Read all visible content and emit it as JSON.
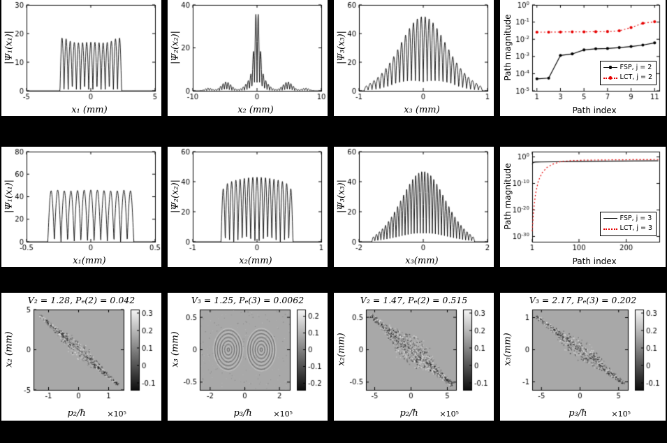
{
  "figure": {
    "background": "#000000",
    "panel_background": "#ffffff",
    "line_color": "#000000",
    "lct_color": "#e60000",
    "heatmap_background": "#a8a8a8",
    "colorbar_top": "#f6f6f6",
    "colorbar_bottom": "#0d0d0d"
  },
  "chart_data": [
    {
      "id": "r1c1",
      "type": "line",
      "xlabel": "x₁ (mm)",
      "ylabel": "|Ψ₁(x₁)|",
      "xlim": [
        -5,
        5
      ],
      "ylim": [
        0,
        30
      ],
      "xticks": [
        -5,
        0,
        5
      ],
      "yticks": [
        0,
        10,
        20,
        30
      ],
      "wave": {
        "model": "comb",
        "support": 2.4,
        "peaks": 15,
        "edge": 26.5,
        "mid": 17
      }
    },
    {
      "id": "r1c2",
      "type": "line",
      "xlabel": "x₂ (mm)",
      "ylabel": "|Ψ₂(x₂)|",
      "xlim": [
        -10,
        10
      ],
      "ylim": [
        0,
        40
      ],
      "xticks": [
        -10,
        0,
        10
      ],
      "yticks": [
        0,
        20,
        40
      ],
      "wave": {
        "model": "bell",
        "support": 9,
        "peaks": 46,
        "floor": 0.1,
        "gauss": [
          {
            "c": 0,
            "A": 30,
            "s": 0.55
          },
          {
            "c": 0,
            "A": 9,
            "s": 1.7
          },
          {
            "c": -4.8,
            "A": 4.5,
            "s": 1.1
          },
          {
            "c": 4.8,
            "A": 4.5,
            "s": 1.1
          },
          {
            "c": -7.6,
            "A": 1.7,
            "s": 0.8
          },
          {
            "c": 7.6,
            "A": 1.7,
            "s": 0.8
          }
        ]
      }
    },
    {
      "id": "r1c3",
      "type": "line",
      "xlabel": "x₃ (mm)",
      "ylabel": "|Ψ₃(x₃)|",
      "xlim": [
        -1,
        1
      ],
      "ylim": [
        0,
        60
      ],
      "xticks": [
        -1,
        0,
        1
      ],
      "yticks": [
        0,
        20,
        40,
        60
      ],
      "wave": {
        "model": "bell",
        "support": 0.92,
        "peaks": 30,
        "floor": 0.12,
        "gauss": [
          {
            "c": 0,
            "A": 30,
            "s": 0.45
          },
          {
            "c": 0,
            "A": 22,
            "s": 0.75
          }
        ]
      }
    },
    {
      "id": "r1c4",
      "type": "series",
      "xlabel": "Path index",
      "ylabel": "Path magnitude",
      "xlim": [
        0.6,
        11.4
      ],
      "xticks": [
        1,
        3,
        5,
        7,
        9,
        11
      ],
      "yexp_lim": [
        -5,
        0
      ],
      "ytick_exps": [
        0,
        -1,
        -2,
        -3,
        -4,
        -5
      ],
      "series": [
        {
          "name": "FSP, j = 2",
          "color": "#000000",
          "dash": "solid",
          "marker": true,
          "points": [
            [
              1,
              5e-05
            ],
            [
              2,
              5.5e-05
            ],
            [
              3,
              0.00115
            ],
            [
              4,
              0.0014
            ],
            [
              5,
              0.0024
            ],
            [
              6,
              0.0028
            ],
            [
              7,
              0.0029
            ],
            [
              8,
              0.0033
            ],
            [
              9,
              0.0038
            ],
            [
              10,
              0.0046
            ],
            [
              11,
              0.0062
            ]
          ]
        },
        {
          "name": "LCT, j = 2",
          "color": "#e60000",
          "dash": "dot",
          "marker": true,
          "points": [
            [
              1,
              0.026
            ],
            [
              2,
              0.026
            ],
            [
              3,
              0.0265
            ],
            [
              4,
              0.027
            ],
            [
              5,
              0.027
            ],
            [
              6,
              0.0275
            ],
            [
              7,
              0.028
            ],
            [
              8,
              0.031
            ],
            [
              9,
              0.048
            ],
            [
              10,
              0.085
            ],
            [
              11,
              0.105
            ]
          ]
        }
      ]
    },
    {
      "id": "r2c1",
      "type": "line",
      "xlabel": "x₁(mm)",
      "ylabel": "|Ψ₁(x₁)|",
      "xlim": [
        -0.5,
        0.5
      ],
      "ylim": [
        0,
        80
      ],
      "xticks": [
        -0.5,
        0,
        0.5
      ],
      "yticks": [
        0,
        20,
        40,
        60,
        80
      ],
      "wave": {
        "model": "comb",
        "support": 0.335,
        "peaks": 13,
        "edge": 63,
        "mid": 46
      }
    },
    {
      "id": "r2c2",
      "type": "line",
      "xlabel": "x₂(mm)",
      "ylabel": "|Ψ₂(x₂)|",
      "xlim": [
        -1,
        1
      ],
      "ylim": [
        0,
        60
      ],
      "xticks": [
        -1,
        0,
        1
      ],
      "yticks": [
        0,
        20,
        40,
        60
      ],
      "wave": {
        "model": "comb",
        "support": 0.56,
        "peaks": 17,
        "edge": 48,
        "mid": 43
      }
    },
    {
      "id": "r2c3",
      "type": "line",
      "xlabel": "x₃(mm)",
      "ylabel": "|Ψ₃(x₃)|",
      "xlim": [
        -2,
        2
      ],
      "ylim": [
        0,
        60
      ],
      "xticks": [
        -2,
        0,
        2
      ],
      "yticks": [
        0,
        20,
        40,
        60
      ],
      "wave": {
        "model": "bell",
        "support": 1.6,
        "peaks": 34,
        "floor": 0.12,
        "gauss": [
          {
            "c": 0,
            "A": 26,
            "s": 0.85
          },
          {
            "c": 0,
            "A": 21,
            "s": 1.3
          }
        ]
      }
    },
    {
      "id": "r2c4",
      "type": "series",
      "xlabel": "Path index",
      "ylabel": "Path magnitude",
      "xlim": [
        1,
        270
      ],
      "xticks": [
        1,
        100,
        200
      ],
      "yexp_lim": [
        -32,
        2
      ],
      "ytick_exps": [
        0,
        -10,
        -20,
        -30
      ],
      "series": [
        {
          "name": "FSP, j = 3",
          "color": "#000000",
          "dash": "solid",
          "marker": false,
          "points": [
            [
              1,
              0.0015
            ],
            [
              3,
              0.009
            ],
            [
              8,
              0.0115
            ],
            [
              20,
              0.013
            ],
            [
              50,
              0.015
            ],
            [
              100,
              0.02
            ],
            [
              160,
              0.026
            ],
            [
              220,
              0.031
            ],
            [
              268,
              0.034
            ]
          ]
        },
        {
          "name": "LCT, j = 3",
          "color": "#e60000",
          "dash": "dot",
          "marker": false,
          "points": [
            [
              1,
              1e-28
            ],
            [
              4,
              1e-20
            ],
            [
              8,
              1e-14
            ],
            [
              14,
              1e-09
            ],
            [
              22,
              1e-06
            ],
            [
              32,
              0.0001
            ],
            [
              45,
              0.002
            ],
            [
              60,
              0.015
            ],
            [
              80,
              0.04
            ],
            [
              110,
              0.06
            ],
            [
              160,
              0.08
            ],
            [
              210,
              0.095
            ],
            [
              268,
              0.11
            ]
          ]
        }
      ]
    },
    {
      "id": "r3c1",
      "type": "heatmap",
      "title": "V₂ = 1.28, Pₑ(2) = 0.042",
      "xlabel": "p₂/ħ",
      "ylabel": "x₂ (mm)",
      "multiplier": "×10⁵",
      "xlim": [
        -1.5,
        1.5
      ],
      "ylim": [
        -5,
        5
      ],
      "xticks": [
        -1,
        0,
        1
      ],
      "yticks": [
        5,
        0,
        -5
      ],
      "colorbar": {
        "ticks": [
          "0.3",
          "0.2",
          "0.1",
          "0",
          "-0.1"
        ],
        "max": 0.32,
        "min": -0.14
      },
      "pattern": {
        "kind": "diag",
        "from": [
          -1.3,
          4.3
        ],
        "to": [
          1.3,
          -4.3
        ],
        "spread": 9,
        "density": 900,
        "seed": 101
      }
    },
    {
      "id": "r3c2",
      "type": "heatmap",
      "title": "V₃ = 1.25, Pₑ(3) = 0.0062",
      "xlabel": "p₃/ħ",
      "ylabel": "x₃ (mm)",
      "multiplier": "×10⁵",
      "xlim": [
        -2.6,
        2.6
      ],
      "ylim": [
        -0.62,
        0.62
      ],
      "xticks": [
        -2,
        0,
        2
      ],
      "yticks": [
        0.5,
        0,
        -0.5
      ],
      "colorbar": {
        "ticks": [
          "0.2",
          "0.1",
          "0",
          "-0.1",
          "-0.2"
        ],
        "max": 0.24,
        "min": -0.24
      },
      "pattern": {
        "kind": "ovals",
        "centers": [
          [
            -0.95,
            0
          ],
          [
            0.95,
            0
          ]
        ],
        "rx": 0.85,
        "ry": 0.33,
        "rings": 12,
        "seed": 202
      }
    },
    {
      "id": "r3c3",
      "type": "heatmap",
      "title": "V₂ = 1.47, Pₑ(2) = 0.515",
      "xlabel": "p₂/ħ",
      "ylabel": "x₂(mm)",
      "multiplier": "×10⁵",
      "xlim": [
        -6.2,
        6.2
      ],
      "ylim": [
        -0.62,
        0.62
      ],
      "xticks": [
        -5,
        0,
        5
      ],
      "yticks": [
        0.5,
        0,
        -0.5
      ],
      "colorbar": {
        "ticks": [
          "0.3",
          "0.2",
          "0.1",
          "0",
          "-0.1"
        ],
        "max": 0.32,
        "min": -0.14
      },
      "pattern": {
        "kind": "diag",
        "from": [
          -5.7,
          0.54
        ],
        "to": [
          5.7,
          -0.54
        ],
        "spread": 15,
        "density": 1600,
        "seed": 303
      }
    },
    {
      "id": "r3c4",
      "type": "heatmap",
      "title": "V₃ = 2.17, Pₑ(3) = 0.202",
      "xlabel": "p₃/ħ",
      "ylabel": "x₃(mm)",
      "multiplier": "×10⁵",
      "xlim": [
        -6.2,
        6.2
      ],
      "ylim": [
        -1.25,
        1.25
      ],
      "xticks": [
        -5,
        0,
        5
      ],
      "yticks": [
        1,
        0,
        -1
      ],
      "colorbar": {
        "ticks": [
          "0.3",
          "0.2",
          "0.1",
          "0",
          "-0.1"
        ],
        "max": 0.32,
        "min": -0.14
      },
      "pattern": {
        "kind": "diag",
        "from": [
          -5.7,
          1.05
        ],
        "to": [
          5.7,
          -1.05
        ],
        "spread": 11,
        "density": 1100,
        "seed": 404
      }
    }
  ]
}
